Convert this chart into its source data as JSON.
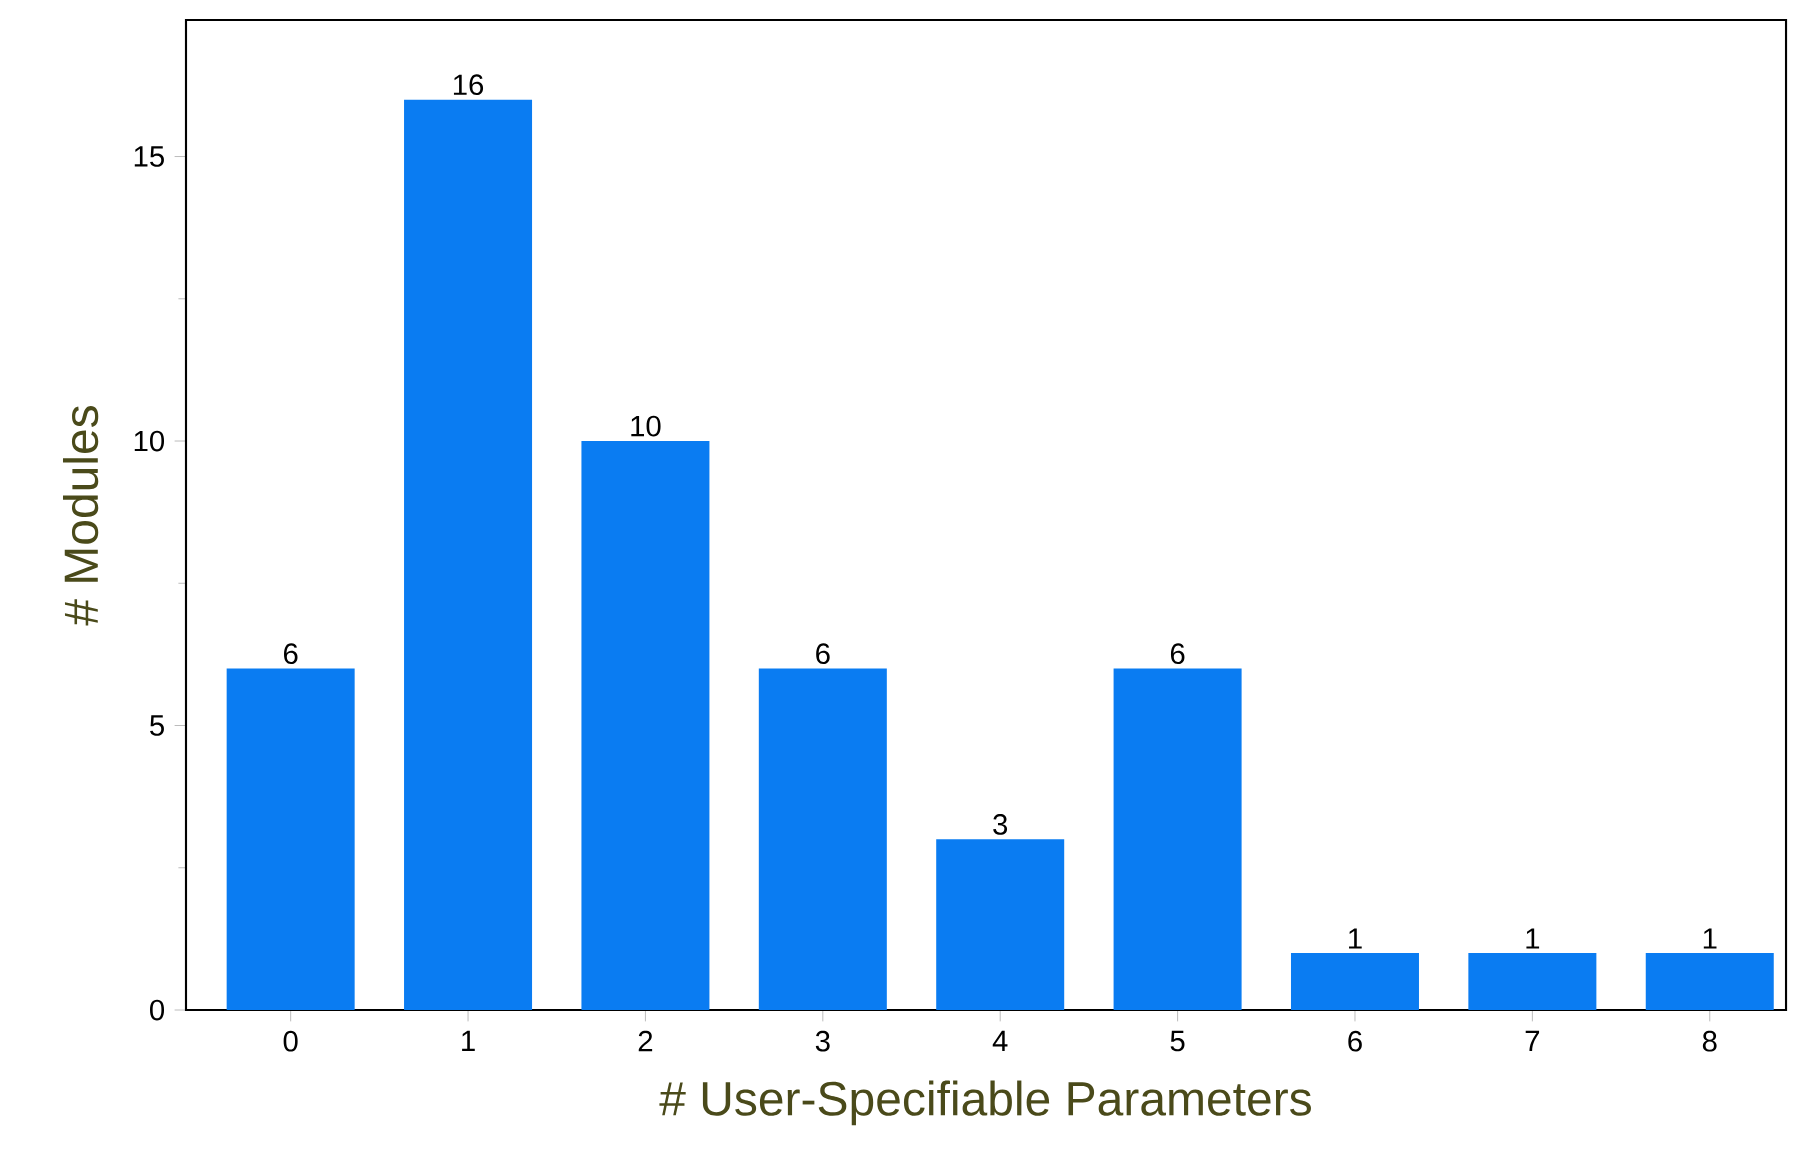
{
  "chart_data": {
    "type": "bar",
    "xlabel": "# User-Specifiable Parameters",
    "ylabel": "# Modules",
    "categories": [
      "0",
      "1",
      "2",
      "3",
      "4",
      "5",
      "6",
      "7",
      "8"
    ],
    "values": [
      6,
      16,
      10,
      6,
      3,
      6,
      1,
      1,
      1
    ],
    "color": "#0a7cf2",
    "ylim": [
      0,
      17.4
    ],
    "yticks": [
      0,
      5,
      10,
      15
    ],
    "data_labels": true
  }
}
